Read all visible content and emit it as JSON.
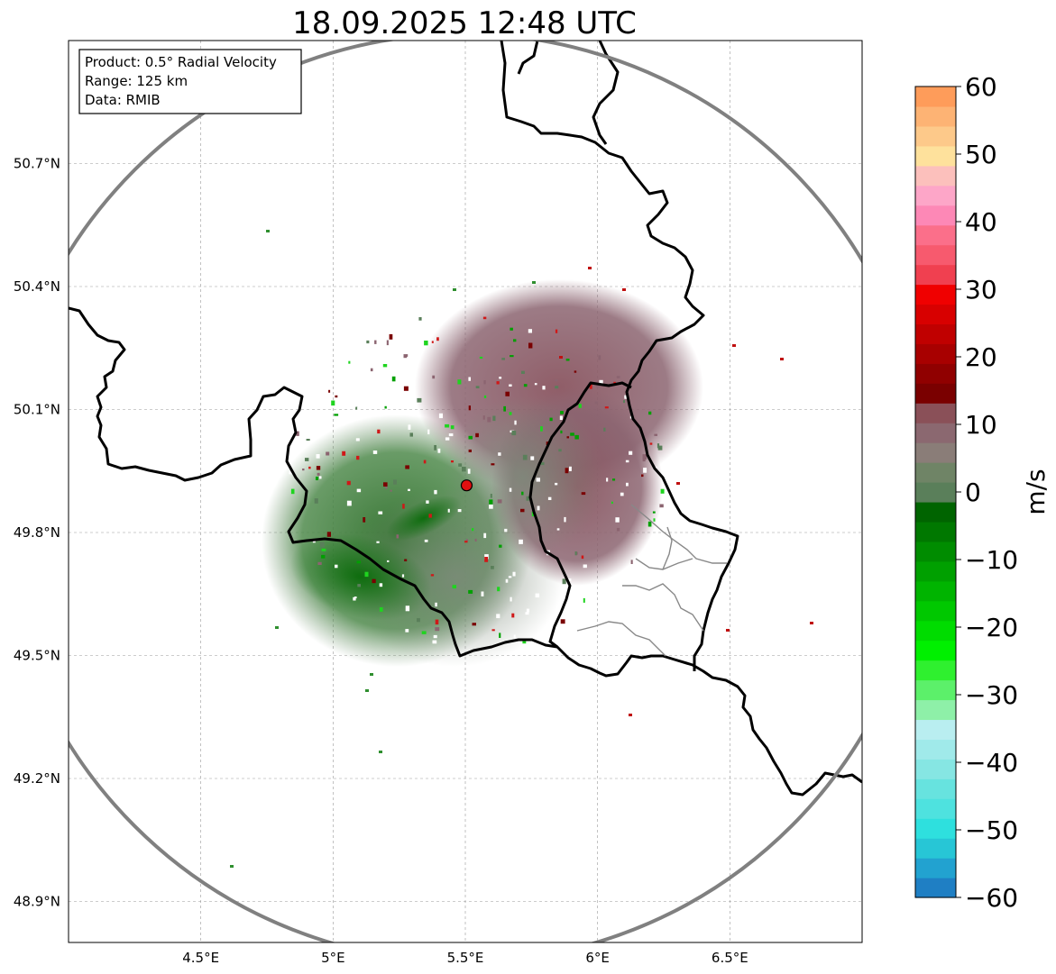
{
  "title": "18.09.2025 12:48 UTC",
  "info_box": {
    "product": "Product: 0.5° Radial Velocity",
    "range": "Range: 125 km",
    "source": "Data: RMIB"
  },
  "map": {
    "lon_range": [
      4.0,
      7.0
    ],
    "lat_range": [
      48.8,
      51.0
    ],
    "lon_ticks": [
      {
        "value": 4.5,
        "label": "4.5°E"
      },
      {
        "value": 5.0,
        "label": "5°E"
      },
      {
        "value": 5.5,
        "label": "5.5°E"
      },
      {
        "value": 6.0,
        "label": "6°E"
      },
      {
        "value": 6.5,
        "label": "6.5°E"
      }
    ],
    "lat_ticks": [
      {
        "value": 50.7,
        "label": "50.7°N"
      },
      {
        "value": 50.4,
        "label": "50.4°N"
      },
      {
        "value": 50.1,
        "label": "50.1°N"
      },
      {
        "value": 49.8,
        "label": "49.8°N"
      },
      {
        "value": 49.5,
        "label": "49.5°N"
      },
      {
        "value": 49.2,
        "label": "49.2°N"
      },
      {
        "value": 48.9,
        "label": "48.9°N"
      }
    ],
    "radar_site": {
      "lon": 5.505,
      "lat": 49.915
    },
    "range_km": 125
  },
  "colorbar": {
    "label": "m/s",
    "vmin": -60,
    "vmax": 60,
    "ticks": [
      "60",
      "50",
      "40",
      "30",
      "20",
      "10",
      "0",
      "−10",
      "−20",
      "−30",
      "−40",
      "−50",
      "−60"
    ],
    "colors": [
      "#1f7fc4",
      "#22a2d0",
      "#27c6d6",
      "#2ee0de",
      "#4ee2df",
      "#67e3df",
      "#86e6e3",
      "#a0eaea",
      "#b9eef0",
      "#8ef0a8",
      "#5cf06a",
      "#2ff02f",
      "#00f000",
      "#00dc00",
      "#00c800",
      "#00b400",
      "#00a000",
      "#008c00",
      "#007800",
      "#006400",
      "#5a7f5a",
      "#6f8466",
      "#8a7d78",
      "#8b6870",
      "#8a5058",
      "#7a0000",
      "#900000",
      "#a80000",
      "#c00000",
      "#d80000",
      "#f00000",
      "#f04050",
      "#f75a6e",
      "#fb6f8a",
      "#fd88b6",
      "#fda6c8",
      "#fcc0bc",
      "#fee19c",
      "#fdc98a",
      "#fdb374",
      "#fe9c5a"
    ]
  }
}
